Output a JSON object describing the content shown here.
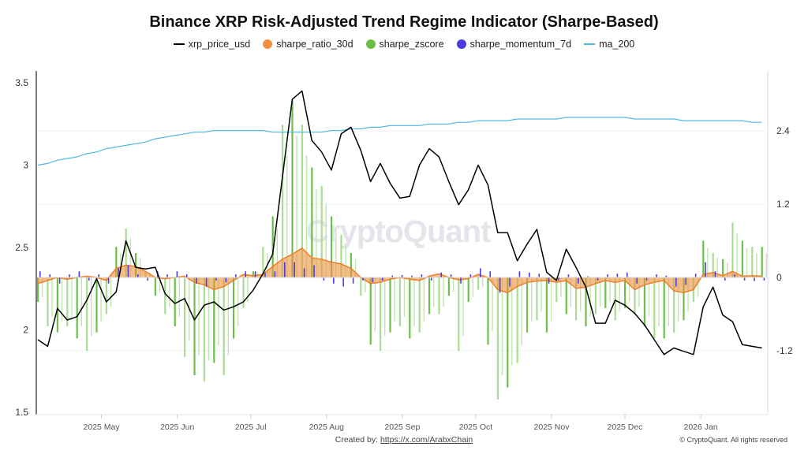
{
  "title": "Binance XRP Risk-Adjusted Trend Regime Indicator (Sharpe-Based)",
  "watermark": "CryptoQuant",
  "footer": {
    "created_by": "Created by:",
    "link": "https://x.com/ArabxChain",
    "copyright": "© CryptoQuant. All rights reserved"
  },
  "colors": {
    "xrp_price_usd": "#000000",
    "sharpe_ratio_30d": "#f0913f",
    "sharpe_zscore": "#6cc04a",
    "sharpe_momentum_7d": "#4b3ae0",
    "ma_200": "#4fb8e0"
  },
  "chart_data": {
    "type": "line",
    "title": "Binance XRP Risk-Adjusted Trend Regime Indicator (Sharpe-Based)",
    "legend": [
      "xrp_price_usd",
      "sharpe_ratio_30d",
      "sharpe_zscore",
      "sharpe_momentum_7d",
      "ma_200"
    ],
    "legend_placement": "top-center",
    "grid": true,
    "x_ticks": [
      "2025 May",
      "2025 Jun",
      "2025 Jul",
      "2025 Aug",
      "2025 Sep",
      "2025 Oct",
      "2025 Nov",
      "2025 Dec",
      "2026 Jan"
    ],
    "x_tick_dates": [
      "2025-05-01",
      "2025-06-01",
      "2025-07-01",
      "2025-08-01",
      "2025-09-01",
      "2025-10-01",
      "2025-11-01",
      "2025-12-01",
      "2026-01-01"
    ],
    "y_left": {
      "ticks": [
        "3.5",
        "3",
        "2.5",
        "2",
        "1.5"
      ],
      "range": [
        1.5,
        3.5
      ]
    },
    "y_right": {
      "ticks": [
        "2.4",
        "1.2",
        "0",
        "-1.2"
      ],
      "range": [
        -2.2,
        3.5
      ]
    },
    "x": [
      "2025-04-05",
      "2025-04-09",
      "2025-04-13",
      "2025-04-17",
      "2025-04-21",
      "2025-04-25",
      "2025-04-29",
      "2025-05-03",
      "2025-05-07",
      "2025-05-11",
      "2025-05-15",
      "2025-05-19",
      "2025-05-23",
      "2025-05-27",
      "2025-05-31",
      "2025-06-04",
      "2025-06-08",
      "2025-06-12",
      "2025-06-16",
      "2025-06-20",
      "2025-06-24",
      "2025-06-28",
      "2025-07-02",
      "2025-07-06",
      "2025-07-10",
      "2025-07-14",
      "2025-07-18",
      "2025-07-22",
      "2025-07-26",
      "2025-07-30",
      "2025-08-03",
      "2025-08-07",
      "2025-08-11",
      "2025-08-15",
      "2025-08-19",
      "2025-08-23",
      "2025-08-27",
      "2025-08-31",
      "2025-09-04",
      "2025-09-08",
      "2025-09-12",
      "2025-09-16",
      "2025-09-20",
      "2025-09-24",
      "2025-09-28",
      "2025-10-02",
      "2025-10-06",
      "2025-10-10",
      "2025-10-14",
      "2025-10-18",
      "2025-10-22",
      "2025-10-26",
      "2025-10-30",
      "2025-11-03",
      "2025-11-07",
      "2025-11-11",
      "2025-11-15",
      "2025-11-19",
      "2025-11-23",
      "2025-11-27",
      "2025-12-01",
      "2025-12-05",
      "2025-12-09",
      "2025-12-13",
      "2025-12-17",
      "2025-12-21",
      "2025-12-25",
      "2025-12-29",
      "2026-01-02",
      "2026-01-06",
      "2026-01-10",
      "2026-01-14",
      "2026-01-18",
      "2026-01-22",
      "2026-01-26"
    ],
    "series": [
      {
        "name": "xrp_price_usd",
        "axis": "left",
        "kind": "line",
        "values": [
          1.94,
          1.9,
          2.13,
          2.06,
          2.08,
          2.18,
          2.31,
          2.17,
          2.23,
          2.54,
          2.38,
          2.37,
          2.38,
          2.22,
          2.16,
          2.19,
          2.06,
          2.15,
          2.17,
          2.12,
          2.14,
          2.17,
          2.24,
          2.34,
          2.46,
          2.93,
          3.4,
          3.45,
          3.15,
          3.08,
          2.97,
          3.19,
          3.23,
          3.09,
          2.9,
          3.01,
          2.89,
          2.8,
          2.81,
          3.0,
          3.1,
          3.05,
          2.9,
          2.76,
          2.85,
          3.0,
          2.88,
          2.59,
          2.59,
          2.42,
          2.52,
          2.61,
          2.35,
          2.3,
          2.49,
          2.38,
          2.26,
          2.04,
          2.04,
          2.18,
          2.15,
          2.1,
          2.03,
          1.94,
          1.85,
          1.89,
          1.87,
          1.85,
          2.14,
          2.26,
          2.09,
          2.05,
          1.91,
          1.9,
          1.89
        ]
      },
      {
        "name": "sharpe_ratio_30d",
        "axis": "right",
        "kind": "area",
        "values": [
          -0.1,
          -0.05,
          0.0,
          -0.03,
          0.0,
          0.02,
          0.0,
          -0.05,
          0.15,
          0.2,
          0.18,
          0.1,
          0.0,
          -0.02,
          0.0,
          0.02,
          -0.08,
          -0.12,
          -0.2,
          -0.15,
          -0.05,
          0.05,
          0.03,
          0.05,
          0.18,
          0.3,
          0.38,
          0.48,
          0.32,
          0.3,
          0.25,
          0.22,
          0.15,
          0.0,
          -0.1,
          -0.08,
          -0.03,
          0.0,
          -0.03,
          -0.05,
          0.02,
          0.06,
          0.0,
          -0.04,
          -0.02,
          0.05,
          0.0,
          -0.2,
          -0.25,
          -0.15,
          -0.08,
          -0.06,
          -0.05,
          -0.08,
          -0.05,
          -0.18,
          -0.16,
          -0.1,
          -0.05,
          -0.08,
          -0.05,
          -0.2,
          -0.12,
          -0.08,
          -0.05,
          -0.22,
          -0.25,
          -0.2,
          0.05,
          0.08,
          0.03,
          0.1,
          0.02,
          0.03,
          0.02
        ]
      },
      {
        "name": "sharpe_zscore",
        "axis": "right",
        "kind": "bar",
        "values": [
          -0.4,
          -0.8,
          -0.9,
          -0.8,
          -1.0,
          -1.2,
          -0.9,
          -0.6,
          0.5,
          0.8,
          0.4,
          0.1,
          -0.3,
          -0.6,
          -0.8,
          -1.3,
          -1.6,
          -1.7,
          -1.4,
          -1.6,
          -1.0,
          -0.5,
          0.1,
          0.5,
          1.0,
          2.5,
          2.9,
          2.5,
          1.8,
          1.5,
          1.0,
          0.7,
          0.4,
          -0.3,
          -1.1,
          -1.2,
          -0.9,
          -0.8,
          -1.0,
          -0.9,
          -0.6,
          -0.6,
          -0.3,
          -1.2,
          -0.4,
          -0.2,
          -1.1,
          -2.0,
          -1.8,
          -1.4,
          -0.9,
          -0.7,
          -0.9,
          -0.4,
          -0.6,
          -0.7,
          -0.8,
          -0.6,
          -0.5,
          -0.7,
          -0.5,
          -0.6,
          -0.8,
          -1.0,
          -1.0,
          -0.9,
          -0.7,
          -0.4,
          0.6,
          0.4,
          0.3,
          0.9,
          0.6,
          0.5,
          0.5
        ]
      },
      {
        "name": "sharpe_momentum_7d",
        "axis": "right",
        "kind": "bar",
        "values": [
          0.1,
          0.05,
          -0.1,
          0.05,
          0.1,
          -0.05,
          0.05,
          -0.1,
          0.15,
          0.2,
          0.05,
          -0.05,
          0.1,
          0.05,
          0.1,
          0.05,
          -0.1,
          -0.15,
          -0.05,
          -0.08,
          0.05,
          0.1,
          0.1,
          0.08,
          0.1,
          0.25,
          0.25,
          0.15,
          0.2,
          -0.05,
          -0.1,
          -0.15,
          -0.1,
          -0.05,
          -0.08,
          -0.05,
          0.03,
          0.04,
          0.03,
          0.05,
          -0.05,
          0.08,
          0.05,
          -0.1,
          0.05,
          0.15,
          0.1,
          -0.25,
          -0.15,
          0.1,
          0.08,
          0.06,
          -0.1,
          -0.05,
          0.05,
          -0.1,
          0.02,
          -0.05,
          0.05,
          0.06,
          0.08,
          -0.1,
          -0.05,
          0.05,
          0.03,
          -0.15,
          -0.12,
          0.06,
          0.25,
          0.1,
          -0.05,
          0.05,
          -0.05,
          -0.06,
          -0.05
        ]
      },
      {
        "name": "ma_200",
        "axis": "left",
        "kind": "line",
        "values": [
          3.0,
          3.01,
          3.03,
          3.04,
          3.05,
          3.07,
          3.08,
          3.1,
          3.11,
          3.12,
          3.13,
          3.14,
          3.16,
          3.17,
          3.18,
          3.19,
          3.2,
          3.2,
          3.21,
          3.21,
          3.21,
          3.21,
          3.21,
          3.21,
          3.2,
          3.2,
          3.2,
          3.2,
          3.2,
          3.2,
          3.21,
          3.21,
          3.22,
          3.22,
          3.23,
          3.23,
          3.24,
          3.24,
          3.24,
          3.24,
          3.25,
          3.25,
          3.25,
          3.26,
          3.26,
          3.27,
          3.27,
          3.27,
          3.27,
          3.28,
          3.28,
          3.28,
          3.28,
          3.28,
          3.29,
          3.29,
          3.29,
          3.29,
          3.29,
          3.29,
          3.29,
          3.28,
          3.28,
          3.28,
          3.28,
          3.28,
          3.27,
          3.27,
          3.27,
          3.27,
          3.27,
          3.27,
          3.27,
          3.26,
          3.26
        ]
      }
    ]
  }
}
